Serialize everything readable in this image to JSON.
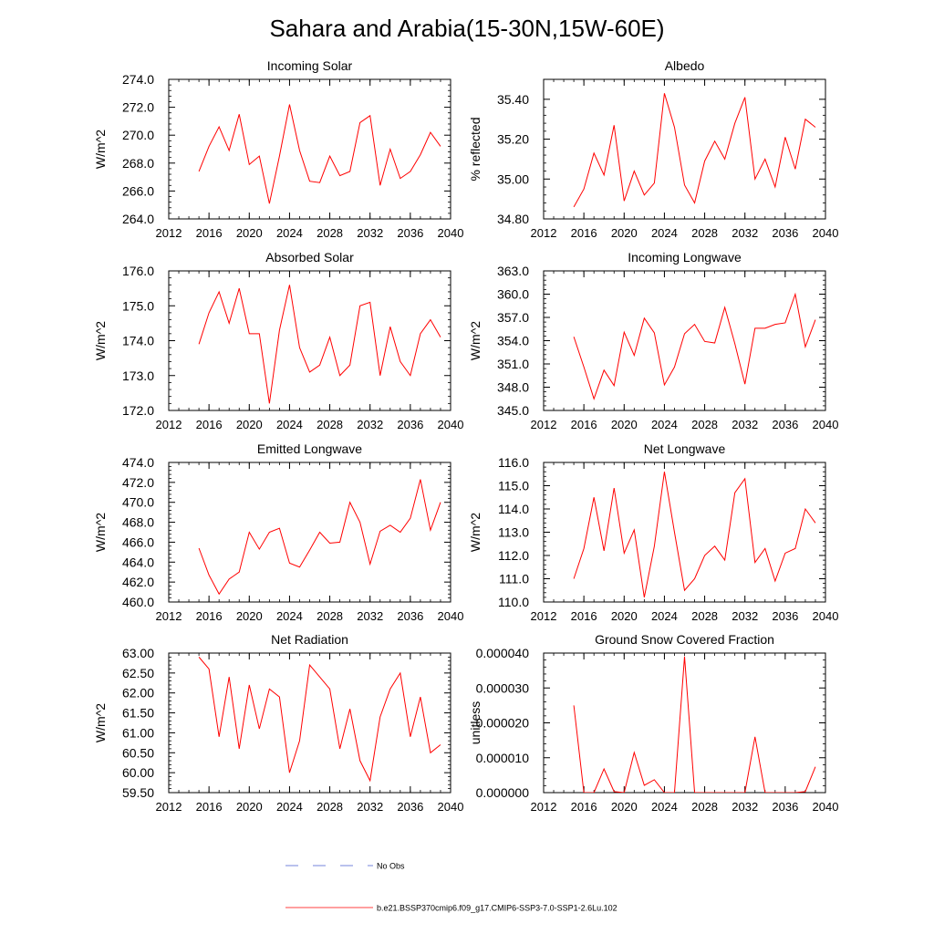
{
  "title": "Sahara and Arabia(15-30N,15W-60E)",
  "colors": {
    "model_line": "#ff0000",
    "obs_line": "#4a5fd0",
    "axis": "#000000"
  },
  "legend": {
    "obs_label": "No Obs",
    "model_label": "b.e21.BSSP370cmip6.f09_g17.CMIP6-SSP3-7.0-SSP1-2.6Lu.102"
  },
  "chart_data": [
    {
      "type": "line",
      "title": "Incoming Solar",
      "xlabel": "",
      "ylabel": "W/m^2",
      "xlim": [
        2012,
        2040
      ],
      "ylim": [
        264,
        274
      ],
      "x_ticks": [
        2012,
        2016,
        2020,
        2024,
        2028,
        2032,
        2036,
        2040
      ],
      "y_ticks": [
        264,
        266,
        268,
        270,
        272,
        274
      ],
      "y_tick_labels": [
        "264.0",
        "266.0",
        "268.0",
        "270.0",
        "272.0",
        "274.0"
      ],
      "x": [
        2015,
        2016,
        2017,
        2018,
        2019,
        2020,
        2021,
        2022,
        2023,
        2024,
        2025,
        2026,
        2027,
        2028,
        2029,
        2030,
        2031,
        2032,
        2033,
        2034,
        2035,
        2036,
        2037,
        2038,
        2039
      ],
      "series": [
        {
          "values": [
            267.4,
            269.2,
            270.6,
            268.9,
            271.5,
            267.9,
            268.5,
            265.1,
            268.5,
            272.2,
            268.9,
            266.7,
            266.6,
            268.5,
            267.1,
            267.4,
            270.9,
            271.4,
            266.4,
            269.0,
            266.9,
            267.4,
            268.6,
            270.2,
            269.2
          ]
        }
      ]
    },
    {
      "type": "line",
      "title": "Albedo",
      "xlabel": "",
      "ylabel": "% reflected",
      "xlim": [
        2012,
        2040
      ],
      "ylim": [
        34.8,
        35.5
      ],
      "x_ticks": [
        2012,
        2016,
        2020,
        2024,
        2028,
        2032,
        2036,
        2040
      ],
      "y_ticks": [
        34.8,
        35.0,
        35.2,
        35.4
      ],
      "y_tick_labels": [
        "34.80",
        "35.00",
        "35.20",
        "35.40"
      ],
      "x": [
        2015,
        2016,
        2017,
        2018,
        2019,
        2020,
        2021,
        2022,
        2023,
        2024,
        2025,
        2026,
        2027,
        2028,
        2029,
        2030,
        2031,
        2032,
        2033,
        2034,
        2035,
        2036,
        2037,
        2038,
        2039
      ],
      "series": [
        {
          "values": [
            34.86,
            34.95,
            35.13,
            35.02,
            35.27,
            34.89,
            35.04,
            34.92,
            34.98,
            35.43,
            35.26,
            34.97,
            34.88,
            35.09,
            35.19,
            35.1,
            35.28,
            35.41,
            35.0,
            35.1,
            34.96,
            35.21,
            35.05,
            35.3,
            35.26
          ]
        }
      ]
    },
    {
      "type": "line",
      "title": "Absorbed Solar",
      "xlabel": "",
      "ylabel": "W/m^2",
      "xlim": [
        2012,
        2040
      ],
      "ylim": [
        172,
        176
      ],
      "x_ticks": [
        2012,
        2016,
        2020,
        2024,
        2028,
        2032,
        2036,
        2040
      ],
      "y_ticks": [
        172,
        173,
        174,
        175,
        176
      ],
      "y_tick_labels": [
        "172.0",
        "173.0",
        "174.0",
        "175.0",
        "176.0"
      ],
      "x": [
        2015,
        2016,
        2017,
        2018,
        2019,
        2020,
        2021,
        2022,
        2023,
        2024,
        2025,
        2026,
        2027,
        2028,
        2029,
        2030,
        2031,
        2032,
        2033,
        2034,
        2035,
        2036,
        2037,
        2038,
        2039
      ],
      "series": [
        {
          "values": [
            173.9,
            174.8,
            175.4,
            174.5,
            175.5,
            174.2,
            174.2,
            172.2,
            174.3,
            175.6,
            173.8,
            173.1,
            173.3,
            174.1,
            173.0,
            173.3,
            175.0,
            175.1,
            173.0,
            174.4,
            173.4,
            173.0,
            174.2,
            174.6,
            174.1
          ]
        }
      ]
    },
    {
      "type": "line",
      "title": "Incoming Longwave",
      "xlabel": "",
      "ylabel": "W/m^2",
      "xlim": [
        2012,
        2040
      ],
      "ylim": [
        345,
        363
      ],
      "x_ticks": [
        2012,
        2016,
        2020,
        2024,
        2028,
        2032,
        2036,
        2040
      ],
      "y_ticks": [
        345,
        348,
        351,
        354,
        357,
        360,
        363
      ],
      "y_tick_labels": [
        "345.0",
        "348.0",
        "351.0",
        "354.0",
        "357.0",
        "360.0",
        "363.0"
      ],
      "x": [
        2015,
        2016,
        2017,
        2018,
        2019,
        2020,
        2021,
        2022,
        2023,
        2024,
        2025,
        2026,
        2027,
        2028,
        2029,
        2030,
        2031,
        2032,
        2033,
        2034,
        2035,
        2036,
        2037,
        2038,
        2039
      ],
      "series": [
        {
          "values": [
            354.5,
            350.6,
            346.5,
            350.2,
            348.2,
            355.1,
            352.1,
            356.9,
            355.0,
            348.3,
            350.6,
            354.9,
            356.1,
            353.9,
            353.7,
            358.3,
            353.6,
            348.4,
            355.6,
            355.6,
            356.1,
            356.3,
            360.0,
            353.2,
            356.7
          ]
        }
      ]
    },
    {
      "type": "line",
      "title": "Emitted Longwave",
      "xlabel": "",
      "ylabel": "W/m^2",
      "xlim": [
        2012,
        2040
      ],
      "ylim": [
        460,
        474
      ],
      "x_ticks": [
        2012,
        2016,
        2020,
        2024,
        2028,
        2032,
        2036,
        2040
      ],
      "y_ticks": [
        460,
        462,
        464,
        466,
        468,
        470,
        472,
        474
      ],
      "y_tick_labels": [
        "460.0",
        "462.0",
        "464.0",
        "466.0",
        "468.0",
        "470.0",
        "472.0",
        "474.0"
      ],
      "x": [
        2015,
        2016,
        2017,
        2018,
        2019,
        2020,
        2021,
        2022,
        2023,
        2024,
        2025,
        2026,
        2027,
        2028,
        2029,
        2030,
        2031,
        2032,
        2033,
        2034,
        2035,
        2036,
        2037,
        2038,
        2039
      ],
      "series": [
        {
          "values": [
            465.4,
            462.7,
            460.8,
            462.3,
            463.0,
            467.0,
            465.3,
            467.0,
            467.4,
            463.9,
            463.5,
            465.2,
            467.0,
            465.9,
            466.0,
            470.0,
            468.0,
            463.8,
            467.1,
            467.7,
            467.0,
            468.4,
            472.3,
            467.2,
            470.0
          ]
        }
      ]
    },
    {
      "type": "line",
      "title": "Net Longwave",
      "xlabel": "",
      "ylabel": "W/m^2",
      "xlim": [
        2012,
        2040
      ],
      "ylim": [
        110,
        116
      ],
      "x_ticks": [
        2012,
        2016,
        2020,
        2024,
        2028,
        2032,
        2036,
        2040
      ],
      "y_ticks": [
        110,
        111,
        112,
        113,
        114,
        115,
        116
      ],
      "y_tick_labels": [
        "110.0",
        "111.0",
        "112.0",
        "113.0",
        "114.0",
        "115.0",
        "116.0"
      ],
      "x": [
        2015,
        2016,
        2017,
        2018,
        2019,
        2020,
        2021,
        2022,
        2023,
        2024,
        2025,
        2026,
        2027,
        2028,
        2029,
        2030,
        2031,
        2032,
        2033,
        2034,
        2035,
        2036,
        2037,
        2038,
        2039
      ],
      "series": [
        {
          "values": [
            111.0,
            112.3,
            114.5,
            112.2,
            114.9,
            112.1,
            113.1,
            110.2,
            112.4,
            115.6,
            113.0,
            110.5,
            111.0,
            112.0,
            112.4,
            111.8,
            114.7,
            115.3,
            111.7,
            112.3,
            110.9,
            112.1,
            112.3,
            114.0,
            113.4
          ]
        }
      ]
    },
    {
      "type": "line",
      "title": "Net Radiation",
      "xlabel": "",
      "ylabel": "W/m^2",
      "xlim": [
        2012,
        2040
      ],
      "ylim": [
        59.5,
        63.0
      ],
      "x_ticks": [
        2012,
        2016,
        2020,
        2024,
        2028,
        2032,
        2036,
        2040
      ],
      "y_ticks": [
        59.5,
        60.0,
        60.5,
        61.0,
        61.5,
        62.0,
        62.5,
        63.0
      ],
      "y_tick_labels": [
        "59.50",
        "60.00",
        "60.50",
        "61.00",
        "61.50",
        "62.00",
        "62.50",
        "63.00"
      ],
      "x": [
        2015,
        2016,
        2017,
        2018,
        2019,
        2020,
        2021,
        2022,
        2023,
        2024,
        2025,
        2026,
        2027,
        2028,
        2029,
        2030,
        2031,
        2032,
        2033,
        2034,
        2035,
        2036,
        2037,
        2038,
        2039
      ],
      "series": [
        {
          "values": [
            62.9,
            62.6,
            60.9,
            62.4,
            60.6,
            62.2,
            61.1,
            62.1,
            61.9,
            60.0,
            60.8,
            62.7,
            62.4,
            62.1,
            60.6,
            61.6,
            60.3,
            59.8,
            61.4,
            62.1,
            62.5,
            60.9,
            61.9,
            60.5,
            60.7
          ]
        }
      ]
    },
    {
      "type": "line",
      "title": "Ground Snow Covered Fraction",
      "xlabel": "",
      "ylabel": "unitless",
      "xlim": [
        2012,
        2040
      ],
      "ylim": [
        0,
        4e-05
      ],
      "x_ticks": [
        2012,
        2016,
        2020,
        2024,
        2028,
        2032,
        2036,
        2040
      ],
      "y_ticks": [
        0,
        1e-05,
        2e-05,
        3e-05,
        4e-05
      ],
      "y_tick_labels": [
        "0.000000",
        "0.000010",
        "0.000020",
        "0.000030",
        "0.000040"
      ],
      "x": [
        2015,
        2016,
        2017,
        2018,
        2019,
        2020,
        2021,
        2022,
        2023,
        2024,
        2025,
        2026,
        2027,
        2028,
        2029,
        2030,
        2031,
        2032,
        2033,
        2034,
        2035,
        2036,
        2037,
        2038,
        2039
      ],
      "series": [
        {
          "values": [
            2.5e-05,
            0.0,
            0.0,
            6.8e-06,
            3e-07,
            0.0,
            1.15e-05,
            2.1e-06,
            3.7e-06,
            0.0,
            0.0,
            3.9e-05,
            0.0,
            0.0,
            0.0,
            0.0,
            0.0,
            0.0,
            1.6e-05,
            0.0,
            0.0,
            0.0,
            0.0,
            3e-07,
            7.4e-06
          ]
        }
      ]
    }
  ]
}
